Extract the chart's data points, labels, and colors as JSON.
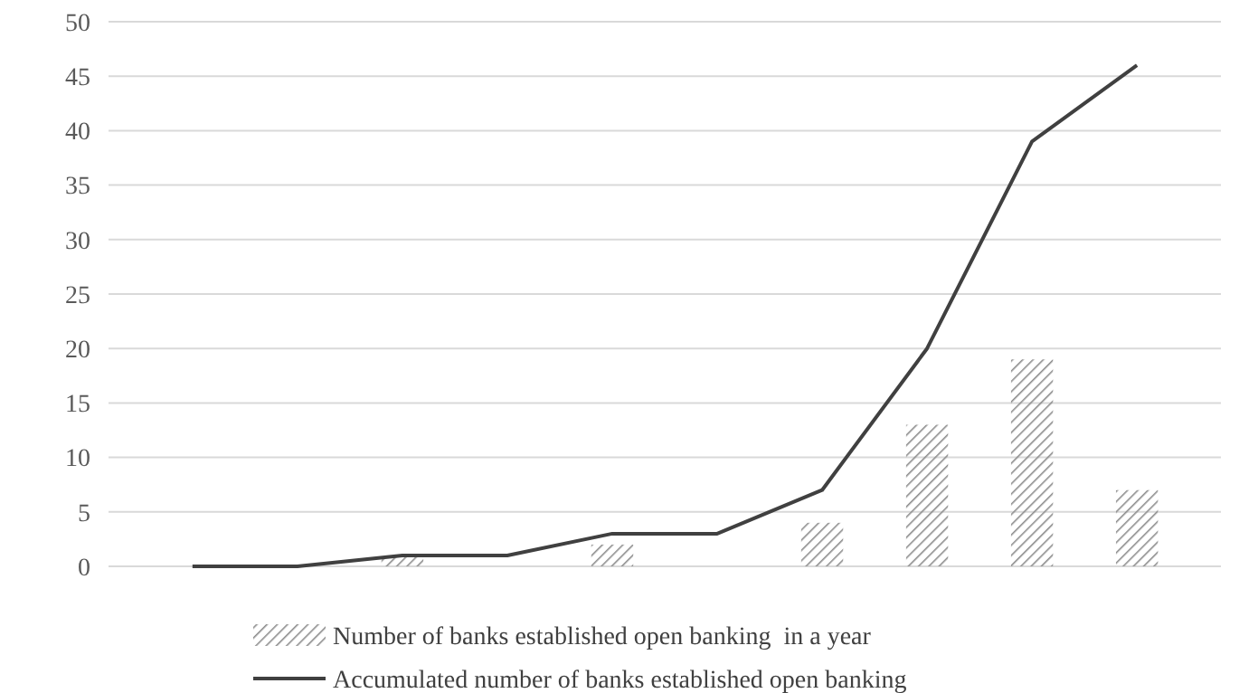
{
  "chart_data": {
    "type": "bar",
    "categories": [
      null,
      null,
      null,
      null,
      null,
      null,
      null,
      null,
      null,
      null
    ],
    "series": [
      {
        "name": "Number of banks established open banking  in a year",
        "color": "#8c8c8c",
        "values": [
          0,
          0,
          1,
          0,
          2,
          0,
          4,
          13,
          19,
          7
        ]
      },
      {
        "name": "Accumulated number of banks established open banking",
        "type": "line",
        "color": "#404040",
        "values": [
          0,
          0,
          1,
          1,
          3,
          3,
          7,
          20,
          39,
          46
        ]
      }
    ],
    "ylim": [
      0,
      50
    ],
    "yticks": [
      0,
      5,
      10,
      15,
      20,
      25,
      30,
      35,
      40,
      45,
      50
    ],
    "grid": "y",
    "legend": "bottom",
    "marker": "none",
    "line_style": "solid"
  }
}
